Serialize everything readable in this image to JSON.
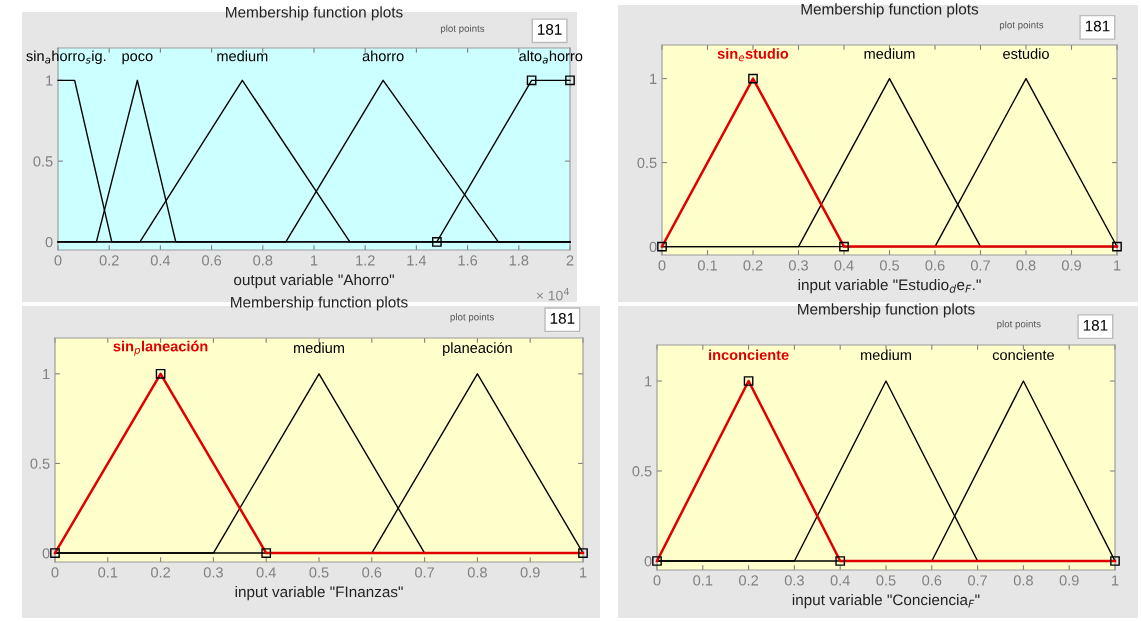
{
  "chart_data": [
    {
      "type": "line",
      "title": "Membership function plots",
      "xlabel": "output variable \"Ahorro\"",
      "xlim": [
        0,
        2
      ],
      "xticks": [
        0,
        0.2,
        0.4,
        0.6,
        0.8,
        1,
        1.2,
        1.4,
        1.6,
        1.8,
        2
      ],
      "ylim": [
        -0.05,
        1.2
      ],
      "yticks": [
        0,
        0.5,
        1
      ],
      "grid": false,
      "annotations": [
        "plot points",
        "181",
        "× 10$^{4}$"
      ],
      "series": [
        {
          "name": "sin$_{a}$horro$_{s}$ig.",
          "color": "#000000",
          "x": [
            0,
            0.065,
            0.21,
            2
          ],
          "values": [
            1,
            1,
            0,
            0
          ]
        },
        {
          "name": "poco",
          "color": "#000000",
          "x": [
            0,
            0.15,
            0.31,
            0.46,
            2
          ],
          "values": [
            0,
            0,
            1,
            0,
            0
          ]
        },
        {
          "name": "medium",
          "color": "#000000",
          "x": [
            0,
            0.32,
            0.72,
            1.14,
            2
          ],
          "values": [
            0,
            0,
            1,
            0,
            0
          ]
        },
        {
          "name": "ahorro",
          "color": "#000000",
          "x": [
            0,
            0.89,
            1.27,
            1.72,
            2
          ],
          "values": [
            0,
            0,
            1,
            0,
            0
          ]
        },
        {
          "name": "alto$_{a}$horro",
          "color": "#000000",
          "marker": "square",
          "x": [
            1.48,
            1.85,
            2
          ],
          "values": [
            0,
            1,
            1
          ]
        }
      ]
    },
    {
      "type": "line",
      "title": "Membership function plots",
      "xlabel": "input variable \"Estudio$_{d}$e$_{F}$.\"",
      "xlim": [
        0,
        1
      ],
      "xticks": [
        0,
        0.1,
        0.2,
        0.3,
        0.4,
        0.5,
        0.6,
        0.7,
        0.8,
        0.9,
        1
      ],
      "ylim": [
        -0.05,
        1.2
      ],
      "yticks": [
        0,
        0.5,
        1
      ],
      "grid": false,
      "annotations": [
        "plot points",
        "181"
      ],
      "series": [
        {
          "name": "medium",
          "color": "#000000",
          "x": [
            0,
            0.3,
            0.5,
            0.7,
            1
          ],
          "values": [
            0,
            0,
            1,
            0,
            0
          ]
        },
        {
          "name": "estudio",
          "color": "#000000",
          "x": [
            0,
            0.6,
            0.8,
            1
          ],
          "values": [
            0,
            0,
            1,
            0
          ]
        },
        {
          "name": "sin$_{e}$studio",
          "color": "#e00000",
          "marker": "square",
          "x": [
            0,
            0.2,
            0.4,
            1
          ],
          "values": [
            0,
            1,
            0,
            0
          ]
        }
      ]
    },
    {
      "type": "line",
      "title": "Membership function plots",
      "xlabel": "input variable \"FInanzas\"",
      "xlim": [
        0,
        1
      ],
      "xticks": [
        0,
        0.1,
        0.2,
        0.3,
        0.4,
        0.5,
        0.6,
        0.7,
        0.8,
        0.9,
        1
      ],
      "ylim": [
        -0.05,
        1.2
      ],
      "yticks": [
        0,
        0.5,
        1
      ],
      "grid": false,
      "annotations": [
        "plot points",
        "181"
      ],
      "series": [
        {
          "name": "medium",
          "color": "#000000",
          "x": [
            0,
            0.3,
            0.5,
            0.7,
            1
          ],
          "values": [
            0,
            0,
            1,
            0,
            0
          ]
        },
        {
          "name": "planeación",
          "color": "#000000",
          "x": [
            0,
            0.6,
            0.8,
            1
          ],
          "values": [
            0,
            0,
            1,
            0
          ]
        },
        {
          "name": "sin$_{p}$laneación",
          "color": "#e00000",
          "marker": "square",
          "x": [
            0,
            0.2,
            0.4,
            1
          ],
          "values": [
            0,
            1,
            0,
            0
          ]
        }
      ]
    },
    {
      "type": "line",
      "title": "Membership function plots",
      "xlabel": "input variable \"Conciencia$_{F}$\"",
      "xlim": [
        0,
        1
      ],
      "xticks": [
        0,
        0.1,
        0.2,
        0.3,
        0.4,
        0.5,
        0.6,
        0.7,
        0.8,
        0.9,
        1
      ],
      "ylim": [
        -0.05,
        1.2
      ],
      "yticks": [
        0,
        0.5,
        1
      ],
      "grid": false,
      "annotations": [
        "plot points",
        "181"
      ],
      "series": [
        {
          "name": "medium",
          "color": "#000000",
          "x": [
            0,
            0.3,
            0.5,
            0.7,
            1
          ],
          "values": [
            0,
            0,
            1,
            0,
            0
          ]
        },
        {
          "name": "conciente",
          "color": "#000000",
          "x": [
            0,
            0.6,
            0.8,
            1
          ],
          "values": [
            0,
            0,
            1,
            0
          ]
        },
        {
          "name": "inconciente",
          "color": "#e00000",
          "marker": "square",
          "x": [
            0,
            0.2,
            0.4,
            1
          ],
          "values": [
            0,
            1,
            0,
            0
          ]
        }
      ]
    }
  ]
}
